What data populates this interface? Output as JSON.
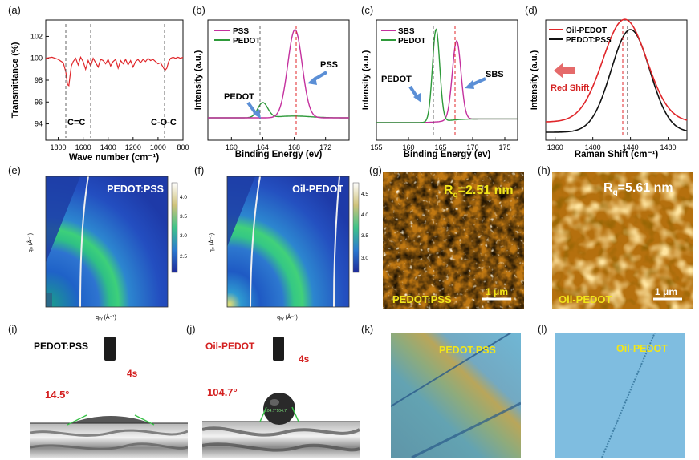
{
  "panels": {
    "a": "(a)",
    "b": "(b)",
    "c": "(c)",
    "d": "(d)",
    "e": "(e)",
    "f": "(f)",
    "g": "(g)",
    "h": "(h)",
    "i": "(i)",
    "j": "(j)",
    "k": "(k)",
    "l": "(l)"
  },
  "colors": {
    "red": "#e0262a",
    "magenta": "#c4309e",
    "green": "#2e9a3a",
    "blue_arrow": "#5b8fd6",
    "black": "#111111",
    "red_label": "#d42020",
    "yellow_label": "#f2e61a",
    "grey_dash": "#555555"
  },
  "chart_data": [
    {
      "panel": "a",
      "type": "line",
      "xlabel": "Wave number (cm⁻¹)",
      "ylabel": "Transmittance (%)",
      "xlim": [
        1900,
        800
      ],
      "ylim": [
        92.5,
        103.5
      ],
      "xticks": [
        "1800",
        "1600",
        "1400",
        "1200",
        "1000",
        "800"
      ],
      "yticks": [
        "94",
        "96",
        "98",
        "100",
        "102"
      ],
      "annotations": [
        "C=C",
        "C-O-C"
      ],
      "series": [
        {
          "color": "#e0262a",
          "x": [
            1900,
            1850,
            1800,
            1760,
            1740,
            1725,
            1715,
            1705,
            1695,
            1680,
            1660,
            1640,
            1620,
            1600,
            1580,
            1560,
            1540,
            1520,
            1500,
            1480,
            1460,
            1440,
            1420,
            1400,
            1380,
            1360,
            1340,
            1320,
            1300,
            1280,
            1260,
            1240,
            1220,
            1200,
            1180,
            1160,
            1140,
            1120,
            1100,
            1080,
            1060,
            1040,
            1020,
            1000,
            980,
            960,
            945,
            930,
            915,
            900,
            880,
            860,
            840,
            820,
            800
          ],
          "y": [
            100.0,
            100.1,
            99.9,
            99.6,
            98.8,
            97.6,
            97.5,
            98.4,
            99.3,
            99.7,
            100.0,
            99.4,
            100.1,
            99.7,
            99.0,
            99.8,
            99.3,
            100.0,
            99.6,
            99.2,
            99.9,
            99.8,
            99.5,
            99.9,
            99.3,
            99.7,
            99.9,
            99.1,
            99.8,
            99.5,
            99.9,
            99.4,
            99.8,
            99.2,
            99.7,
            99.9,
            99.6,
            99.9,
            99.7,
            100.0,
            99.8,
            99.9,
            99.7,
            99.5,
            99.6,
            99.2,
            98.9,
            99.1,
            99.7,
            100.0,
            100.1,
            100.0,
            100.1,
            100.0,
            100.1
          ]
        }
      ]
    },
    {
      "panel": "b",
      "type": "line",
      "xlabel": "Binding Energy (ev)",
      "ylabel": "Intensity (a.u.)",
      "xlim": [
        157,
        175
      ],
      "xticks": [
        "160",
        "164",
        "168",
        "172"
      ],
      "legend": [
        "PSS",
        "PEDOT"
      ],
      "annotations": [
        "PEDOT",
        "PSS"
      ],
      "series": [
        {
          "name": "PSS",
          "color": "#c4309e",
          "center": 168.1,
          "width": 1.3,
          "amplitude": 1.0
        },
        {
          "name": "PEDOT",
          "color": "#2e9a3a",
          "center": 164.0,
          "width": 0.9,
          "amplitude": 0.17
        }
      ]
    },
    {
      "panel": "c",
      "type": "line",
      "xlabel": "Binding Energy (ev)",
      "ylabel": "Intensity (a.u.)",
      "xlim": [
        155,
        177
      ],
      "xticks": [
        "155",
        "160",
        "165",
        "170",
        "175"
      ],
      "legend": [
        "SBS",
        "PEDOT"
      ],
      "annotations": [
        "PEDOT",
        "SBS"
      ],
      "series": [
        {
          "name": "SBS",
          "color": "#c4309e",
          "center": 167.5,
          "width": 0.95,
          "amplitude": 0.85
        },
        {
          "name": "PEDOT",
          "color": "#2e9a3a",
          "center": 164.3,
          "width": 0.8,
          "amplitude": 1.0
        }
      ]
    },
    {
      "panel": "d",
      "type": "line",
      "xlabel": "Raman Shift (cm⁻¹)",
      "ylabel": "Intensity (a.u.)",
      "xlim": [
        1350,
        1500
      ],
      "xticks": [
        "1360",
        "1400",
        "1440",
        "1480"
      ],
      "legend": [
        "Oil-PEDOT",
        "PEDOT:PSS"
      ],
      "annotations": [
        "Red Shift"
      ],
      "series": [
        {
          "name": "Oil-PEDOT",
          "color": "#e0262a",
          "center": 1434,
          "width": 33
        },
        {
          "name": "PEDOT:PSS",
          "color": "#111111",
          "center": 1440,
          "width": 29
        }
      ]
    },
    {
      "panel": "e",
      "type": "heatmap",
      "xlabel": "qₓᵧ (Å⁻¹)",
      "ylabel": "qᵩ (Å⁻¹)",
      "sample": "PEDOT:PSS",
      "colorbar_ticks": [
        "4.0",
        "3.5",
        "3.0",
        "2.5"
      ]
    },
    {
      "panel": "f",
      "type": "heatmap",
      "xlabel": "qₓᵧ (Å⁻¹)",
      "ylabel": "qᵩ (Å⁻¹)",
      "sample": "Oil-PEDOT",
      "colorbar_ticks": [
        "4.5",
        "4.0",
        "3.5",
        "3.0"
      ]
    }
  ],
  "afm": {
    "g": {
      "roughness": "R",
      "sub": "q",
      "value": "=2.51 nm",
      "sample": "PEDOT:PSS",
      "scale": "1 μm"
    },
    "h": {
      "roughness": "R",
      "sub": "q",
      "value": "=5.61 nm",
      "sample": "Oil-PEDOT",
      "scale": "1 μm"
    }
  },
  "contact": {
    "i": {
      "sample": "PEDOT:PSS",
      "time": "4s",
      "angle": "14.5°"
    },
    "j": {
      "sample": "Oil-PEDOT",
      "time": "4s",
      "angle": "104.7°",
      "inset": "104.7°104.7"
    }
  },
  "micro": {
    "k": {
      "sample": "PEDOT:PSS"
    },
    "l": {
      "sample": "Oil-PEDOT"
    }
  }
}
